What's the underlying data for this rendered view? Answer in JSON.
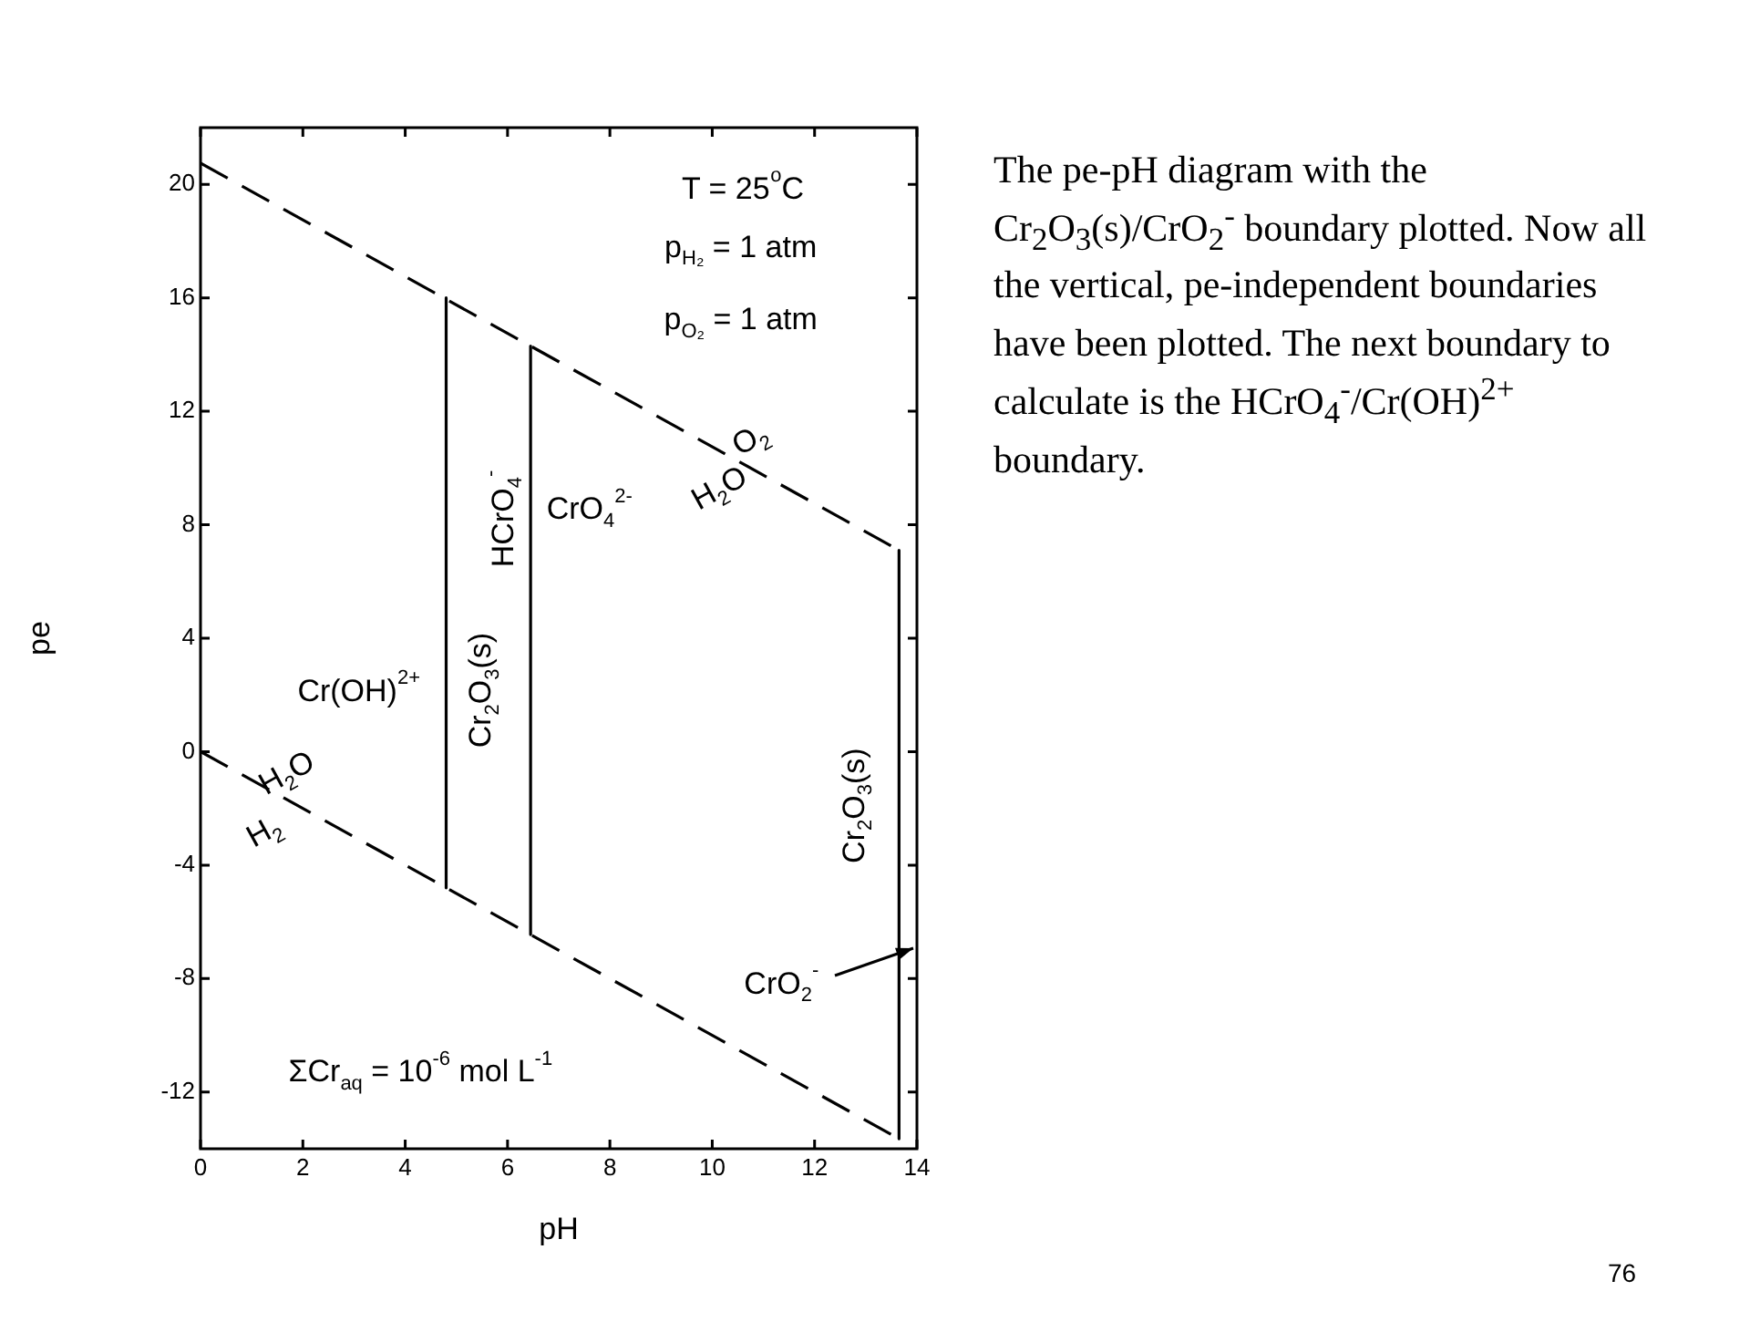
{
  "chart_data": {
    "type": "line",
    "xlabel": "pH",
    "ylabel": "pe",
    "xlim": [
      0,
      14
    ],
    "xticks": [
      0,
      2,
      4,
      6,
      8,
      10,
      12,
      14
    ],
    "ylim": [
      -14,
      22
    ],
    "yticks": [
      -12,
      -8,
      -4,
      0,
      4,
      8,
      12,
      16,
      20
    ],
    "marker": "none",
    "legend": false,
    "series": [
      {
        "color": "#000000",
        "line_style": "dashed",
        "x": [
          0,
          13.65
        ],
        "values": [
          20.75,
          7.1
        ]
      },
      {
        "color": "#000000",
        "line_style": "dashed",
        "x": [
          0,
          13.65
        ],
        "values": [
          0,
          -13.65
        ]
      },
      {
        "color": "#000000",
        "line_style": "solid",
        "x": [
          4.8,
          4.8
        ],
        "values": [
          16,
          -4.8
        ]
      },
      {
        "color": "#000000",
        "line_style": "solid",
        "x": [
          6.45,
          6.45
        ],
        "values": [
          14.3,
          -6.45
        ]
      },
      {
        "color": "#000000",
        "line_style": "solid",
        "x": [
          13.65,
          13.65
        ],
        "values": [
          7.1,
          -13.65
        ]
      }
    ],
    "annotations": [
      "T = 25$^{o}$C",
      "p$_{H₂}$ = 1 atm",
      "p$_{O₂}$ = 1 atm",
      "O$_{2}$",
      "H$_{2}$O",
      "HCrO$_{4}$$^{-}$",
      "CrO$_{4}$$^{2-}$",
      "Cr(OH)$^{2+}$",
      "Cr$_{2}$O$_{3}$(s)",
      "H$_{2}$O",
      "H$_{2}$",
      "Cr$_{2}$O$_{3}$(s)",
      "CrO$_{2}$$^{-}$",
      "ΣCr$_{aq}$ = 10$^{-6}$ mol L$^{-1}$",
      "The pe-pH diagram with the Cr$_{2}$O$_{3}$(s)/CrO$_{2}$$^{-}$ boundary plotted. Now all the vertical, pe-independent boundaries have been plotted. The next boundary to calculate is the HCrO$_{4}$$^{-}$/Cr(OH)$^{2+}$ boundary.",
      "76"
    ]
  }
}
